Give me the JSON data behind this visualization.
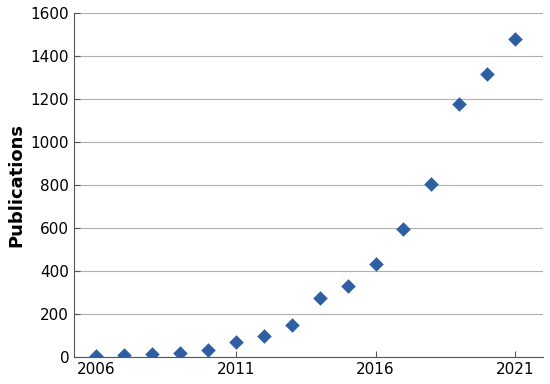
{
  "years": [
    2006,
    2007,
    2008,
    2009,
    2010,
    2011,
    2012,
    2013,
    2014,
    2015,
    2016,
    2017,
    2018,
    2019,
    2020,
    2021
  ],
  "publications": [
    5,
    10,
    15,
    20,
    35,
    70,
    100,
    150,
    275,
    330,
    435,
    595,
    805,
    1175,
    1315,
    1480
  ],
  "marker_color": "#2E5FA3",
  "marker": "D",
  "marker_size": 55,
  "ylabel": "Publications",
  "ylabel_fontsize": 13,
  "ylabel_fontweight": "bold",
  "xlim": [
    2005.2,
    2022.0
  ],
  "ylim": [
    0,
    1600
  ],
  "yticks": [
    0,
    200,
    400,
    600,
    800,
    1000,
    1200,
    1400,
    1600
  ],
  "xticks": [
    2006,
    2011,
    2016,
    2021
  ],
  "grid_color": "#b0b0b0",
  "grid_linewidth": 0.8,
  "background_color": "#ffffff",
  "spine_color": "#555555",
  "tick_labelsize": 11
}
